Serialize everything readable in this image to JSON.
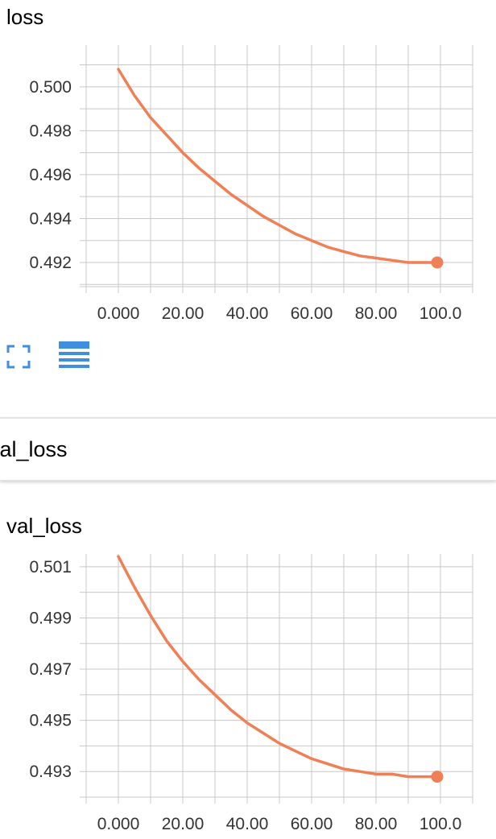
{
  "charts": [
    {
      "title": "loss"
    },
    {
      "title": "val_loss"
    }
  ],
  "group": {
    "title": "val_loss"
  },
  "toolbar": {
    "fullscreen_icon": "fullscreen-icon",
    "data_icon": "data-table-icon"
  },
  "colors": {
    "series": "#f07f55",
    "grid": "#c8c8c8",
    "icon": "#3f8ee0"
  },
  "chart_data": [
    {
      "type": "line",
      "title": "loss",
      "xlabel": "",
      "ylabel": "",
      "x_ticks": [
        "0.000",
        "20.00",
        "40.00",
        "60.00",
        "80.00",
        "100.0"
      ],
      "y_ticks": [
        "0.492",
        "0.494",
        "0.496",
        "0.498",
        "0.500"
      ],
      "xlim": [
        -10,
        110
      ],
      "ylim": [
        0.4909,
        0.5019
      ],
      "grid": true,
      "series": [
        {
          "x": [
            0,
            5,
            10,
            15,
            20,
            25,
            30,
            35,
            40,
            45,
            50,
            55,
            60,
            65,
            70,
            75,
            80,
            85,
            90,
            95,
            99
          ],
          "y": [
            0.5008,
            0.4996,
            0.4986,
            0.4978,
            0.497,
            0.4963,
            0.4957,
            0.4951,
            0.4946,
            0.4941,
            0.4937,
            0.4933,
            0.493,
            0.4927,
            0.4925,
            0.4923,
            0.4922,
            0.4921,
            0.492,
            0.492,
            0.492
          ]
        }
      ]
    },
    {
      "type": "line",
      "title": "val_loss",
      "xlabel": "",
      "ylabel": "",
      "x_ticks": [
        "0.000",
        "20.00",
        "40.00",
        "60.00",
        "80.00",
        "100.0"
      ],
      "y_ticks": [
        "0.493",
        "0.495",
        "0.497",
        "0.499",
        "0.501"
      ],
      "xlim": [
        -10,
        110
      ],
      "ylim": [
        0.492,
        0.5015
      ],
      "grid": true,
      "series": [
        {
          "x": [
            0,
            5,
            10,
            15,
            20,
            25,
            30,
            35,
            40,
            45,
            50,
            55,
            60,
            65,
            70,
            75,
            80,
            85,
            90,
            95,
            99
          ],
          "y": [
            0.5014,
            0.5002,
            0.4991,
            0.4981,
            0.4973,
            0.4966,
            0.496,
            0.4954,
            0.4949,
            0.4945,
            0.4941,
            0.4938,
            0.4935,
            0.4933,
            0.4931,
            0.493,
            0.4929,
            0.4929,
            0.4928,
            0.4928,
            0.4928
          ]
        }
      ]
    }
  ]
}
